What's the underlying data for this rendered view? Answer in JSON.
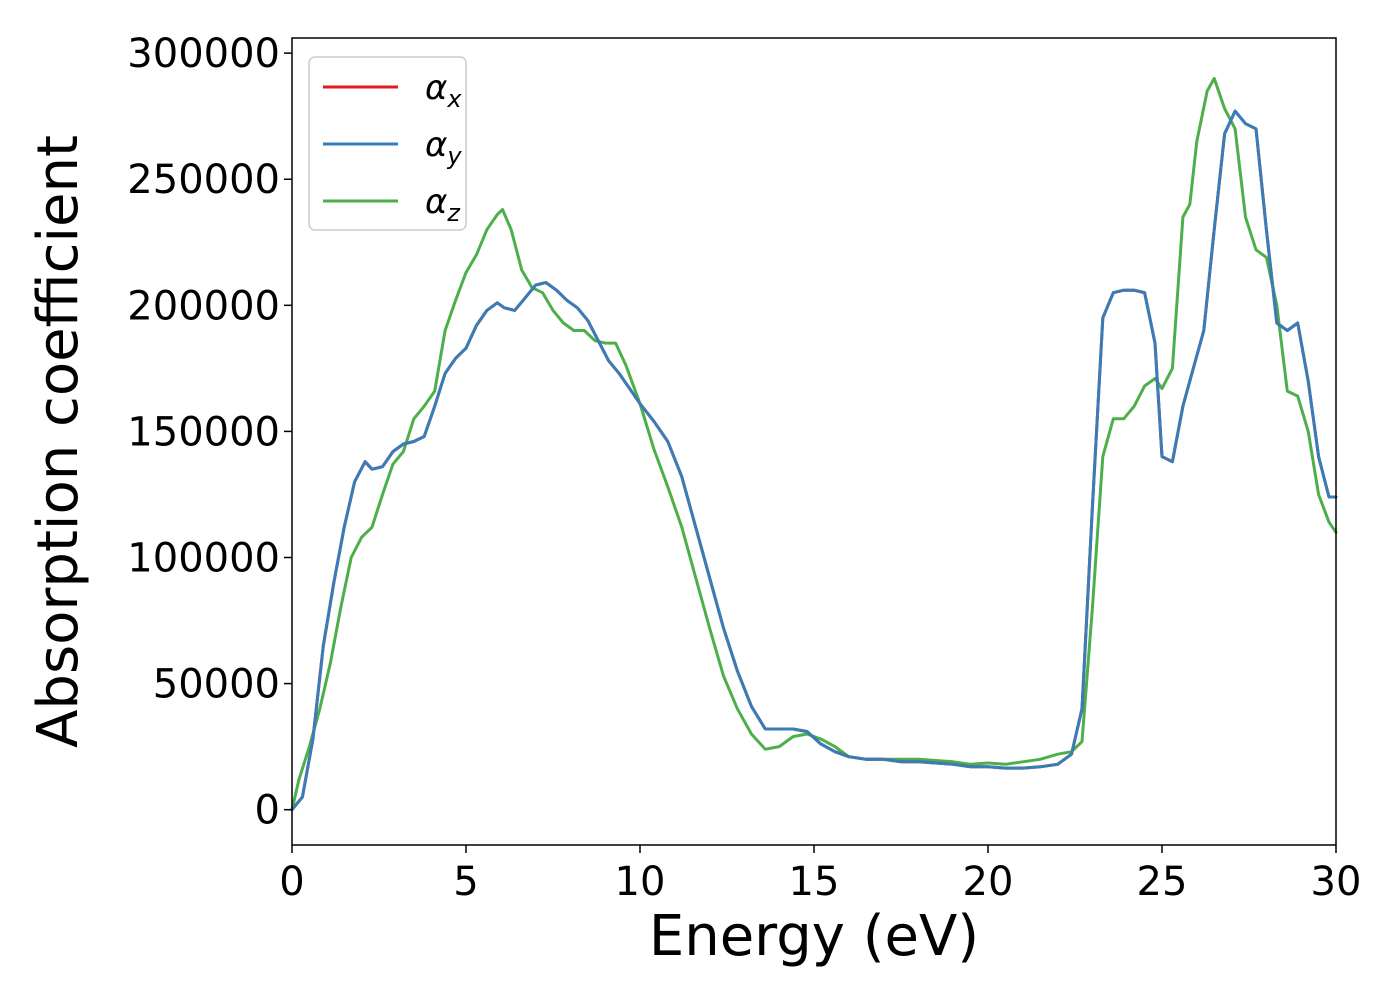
{
  "chart_data": {
    "type": "line",
    "title": "",
    "xlabel": "Energy (eV)",
    "ylabel": "Absorption coefficient",
    "xlim": [
      0,
      30
    ],
    "ylim": [
      -14000,
      306000
    ],
    "xticks": [
      0,
      5,
      10,
      15,
      20,
      25,
      30
    ],
    "yticks": [
      0,
      50000,
      100000,
      150000,
      200000,
      250000,
      300000
    ],
    "grid": false,
    "legend_position": "top-left",
    "series": [
      {
        "name": "α_x",
        "legend_main": "α",
        "legend_sub": "x",
        "color": "#e41a1c",
        "x": [
          0,
          0.3,
          0.6,
          0.9,
          1.2,
          1.5,
          1.8,
          2.1,
          2.3,
          2.6,
          2.9,
          3.2,
          3.5,
          3.8,
          4.1,
          4.4,
          4.7,
          5.0,
          5.3,
          5.6,
          5.9,
          6.1,
          6.4,
          6.7,
          7.0,
          7.3,
          7.6,
          7.9,
          8.2,
          8.5,
          8.8,
          9.1,
          9.4,
          9.7,
          10.0,
          10.4,
          10.8,
          11.2,
          11.6,
          12.0,
          12.4,
          12.8,
          13.2,
          13.6,
          14.0,
          14.4,
          14.8,
          15.2,
          15.6,
          16.0,
          16.5,
          17.0,
          17.5,
          18.0,
          18.5,
          19.0,
          19.5,
          20.0,
          20.5,
          21.0,
          21.5,
          22.0,
          22.4,
          22.7,
          23.0,
          23.3,
          23.6,
          23.9,
          24.2,
          24.5,
          24.8,
          25.0,
          25.3,
          25.6,
          25.9,
          26.2,
          26.5,
          26.8,
          27.1,
          27.4,
          27.7,
          28.0,
          28.3,
          28.6,
          28.9,
          29.2,
          29.5,
          29.8,
          30.0
        ],
        "y": [
          0,
          5000,
          28000,
          65000,
          90000,
          112000,
          130000,
          138000,
          135000,
          136000,
          142000,
          145000,
          146000,
          148000,
          160000,
          173000,
          179000,
          183000,
          192000,
          198000,
          201000,
          199000,
          198000,
          203000,
          208000,
          209000,
          206000,
          202000,
          199000,
          194000,
          186000,
          178000,
          173000,
          167000,
          161000,
          154000,
          146000,
          132000,
          112000,
          92000,
          72000,
          55000,
          41000,
          32000,
          32000,
          32000,
          31000,
          26000,
          23000,
          21000,
          20000,
          20000,
          19000,
          19000,
          18500,
          18000,
          17000,
          17000,
          16500,
          16500,
          17000,
          18000,
          22000,
          40000,
          120000,
          195000,
          205000,
          206000,
          206000,
          205000,
          185000,
          140000,
          138000,
          160000,
          175000,
          190000,
          230000,
          268000,
          277000,
          272000,
          270000,
          230000,
          193000,
          190000,
          193000,
          170000,
          140000,
          124000,
          124000
        ]
      },
      {
        "name": "α_y",
        "legend_main": "α",
        "legend_sub": "y",
        "color": "#377eb8",
        "x": [
          0,
          0.3,
          0.6,
          0.9,
          1.2,
          1.5,
          1.8,
          2.1,
          2.3,
          2.6,
          2.9,
          3.2,
          3.5,
          3.8,
          4.1,
          4.4,
          4.7,
          5.0,
          5.3,
          5.6,
          5.9,
          6.1,
          6.4,
          6.7,
          7.0,
          7.3,
          7.6,
          7.9,
          8.2,
          8.5,
          8.8,
          9.1,
          9.4,
          9.7,
          10.0,
          10.4,
          10.8,
          11.2,
          11.6,
          12.0,
          12.4,
          12.8,
          13.2,
          13.6,
          14.0,
          14.4,
          14.8,
          15.2,
          15.6,
          16.0,
          16.5,
          17.0,
          17.5,
          18.0,
          18.5,
          19.0,
          19.5,
          20.0,
          20.5,
          21.0,
          21.5,
          22.0,
          22.4,
          22.7,
          23.0,
          23.3,
          23.6,
          23.9,
          24.2,
          24.5,
          24.8,
          25.0,
          25.3,
          25.6,
          25.9,
          26.2,
          26.5,
          26.8,
          27.1,
          27.4,
          27.7,
          28.0,
          28.3,
          28.6,
          28.9,
          29.2,
          29.5,
          29.8,
          30.0
        ],
        "y": [
          0,
          5000,
          28000,
          65000,
          90000,
          112000,
          130000,
          138000,
          135000,
          136000,
          142000,
          145000,
          146000,
          148000,
          160000,
          173000,
          179000,
          183000,
          192000,
          198000,
          201000,
          199000,
          198000,
          203000,
          208000,
          209000,
          206000,
          202000,
          199000,
          194000,
          186000,
          178000,
          173000,
          167000,
          161000,
          154000,
          146000,
          132000,
          112000,
          92000,
          72000,
          55000,
          41000,
          32000,
          32000,
          32000,
          31000,
          26000,
          23000,
          21000,
          20000,
          20000,
          19000,
          19000,
          18500,
          18000,
          17000,
          17000,
          16500,
          16500,
          17000,
          18000,
          22000,
          40000,
          120000,
          195000,
          205000,
          206000,
          206000,
          205000,
          185000,
          140000,
          138000,
          160000,
          175000,
          190000,
          230000,
          268000,
          277000,
          272000,
          270000,
          230000,
          193000,
          190000,
          193000,
          170000,
          140000,
          124000,
          124000
        ]
      },
      {
        "name": "α_z",
        "legend_main": "α",
        "legend_sub": "z",
        "color": "#4daf4a",
        "x": [
          0,
          0.2,
          0.5,
          0.8,
          1.1,
          1.4,
          1.7,
          2.0,
          2.3,
          2.6,
          2.9,
          3.2,
          3.5,
          3.8,
          4.1,
          4.4,
          4.7,
          5.0,
          5.3,
          5.6,
          5.9,
          6.05,
          6.3,
          6.6,
          6.9,
          7.2,
          7.5,
          7.8,
          8.1,
          8.4,
          8.7,
          9.0,
          9.3,
          9.6,
          10.0,
          10.4,
          10.8,
          11.2,
          11.6,
          12.0,
          12.4,
          12.8,
          13.2,
          13.6,
          14.0,
          14.4,
          14.8,
          15.2,
          15.6,
          16.0,
          16.5,
          17.0,
          17.5,
          18.0,
          18.5,
          19.0,
          19.5,
          20.0,
          20.5,
          21.0,
          21.5,
          22.0,
          22.4,
          22.7,
          23.0,
          23.3,
          23.6,
          23.9,
          24.2,
          24.5,
          24.8,
          25.0,
          25.3,
          25.6,
          25.8,
          26.0,
          26.3,
          26.5,
          26.8,
          27.1,
          27.4,
          27.7,
          28.0,
          28.3,
          28.6,
          28.9,
          29.2,
          29.5,
          29.8,
          30.0
        ],
        "y": [
          0,
          12000,
          25000,
          40000,
          58000,
          80000,
          100000,
          108000,
          112000,
          125000,
          137000,
          142000,
          155000,
          160000,
          166000,
          190000,
          202000,
          213000,
          220000,
          230000,
          236000,
          238000,
          230000,
          214000,
          207000,
          205000,
          198000,
          193000,
          190000,
          190000,
          186000,
          185000,
          185000,
          176000,
          161000,
          143000,
          128000,
          112000,
          92000,
          72000,
          53000,
          40000,
          30000,
          24000,
          25000,
          29000,
          30000,
          28000,
          25000,
          21000,
          20000,
          20000,
          20000,
          20000,
          19500,
          19000,
          18000,
          18500,
          18000,
          19000,
          20000,
          22000,
          23000,
          27000,
          80000,
          140000,
          155000,
          155000,
          160000,
          168000,
          171000,
          167000,
          175000,
          235000,
          240000,
          265000,
          285000,
          290000,
          278000,
          270000,
          235000,
          222000,
          219000,
          200000,
          166000,
          164000,
          150000,
          125000,
          114000,
          110000
        ]
      }
    ]
  }
}
